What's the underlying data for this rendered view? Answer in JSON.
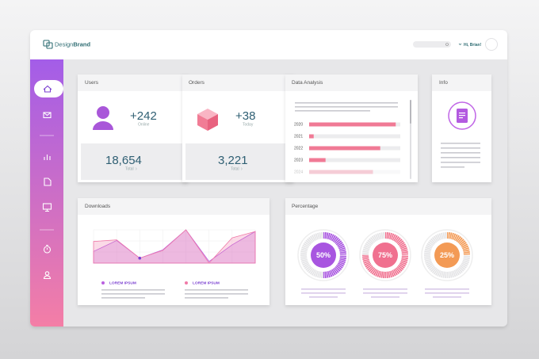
{
  "header": {
    "logo_regular": "Design",
    "logo_bold": "Brand",
    "greeting": "Hi, Brian!"
  },
  "users": {
    "title": "Users",
    "delta": "+242",
    "delta_label": "Online",
    "total": "18,654",
    "total_label": "Total"
  },
  "orders": {
    "title": "Orders",
    "delta": "+38",
    "delta_label": "Today",
    "total": "3,221",
    "total_label": "Total"
  },
  "data_analysis": {
    "title": "Data Analysis",
    "categories": [
      "2020",
      "2021",
      "2022",
      "2023",
      "2024"
    ],
    "values": [
      95,
      5,
      78,
      18,
      70
    ],
    "xlim": [
      0,
      100
    ],
    "color": "#f07a95"
  },
  "info": {
    "title": "Info"
  },
  "downloads": {
    "title": "Downloads",
    "type": "area",
    "ylim": [
      0,
      100
    ],
    "series": [
      {
        "name": "LOREM IPSUM",
        "color": "#b95fe0",
        "values": [
          35,
          68,
          15,
          40,
          100,
          5,
          55,
          95
        ]
      },
      {
        "name": "LOREM IPSUM",
        "color": "#f07aa8",
        "values": [
          65,
          70,
          15,
          38,
          100,
          0,
          76,
          95
        ]
      }
    ]
  },
  "percentage": {
    "title": "Percentage",
    "items": [
      {
        "value": 50,
        "label": "50%",
        "color": "#a855e0"
      },
      {
        "value": 75,
        "label": "75%",
        "color": "#f0708f"
      },
      {
        "value": 25,
        "label": "25%",
        "color": "#f39a55"
      }
    ]
  }
}
